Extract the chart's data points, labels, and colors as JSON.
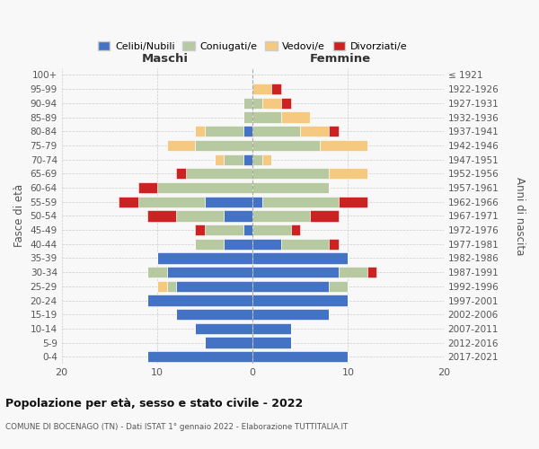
{
  "age_groups": [
    "100+",
    "95-99",
    "90-94",
    "85-89",
    "80-84",
    "75-79",
    "70-74",
    "65-69",
    "60-64",
    "55-59",
    "50-54",
    "45-49",
    "40-44",
    "35-39",
    "30-34",
    "25-29",
    "20-24",
    "15-19",
    "10-14",
    "5-9",
    "0-4"
  ],
  "birth_years": [
    "≤ 1921",
    "1922-1926",
    "1927-1931",
    "1932-1936",
    "1937-1941",
    "1942-1946",
    "1947-1951",
    "1952-1956",
    "1957-1961",
    "1962-1966",
    "1967-1971",
    "1972-1976",
    "1977-1981",
    "1982-1986",
    "1987-1991",
    "1992-1996",
    "1997-2001",
    "2002-2006",
    "2007-2011",
    "2012-2016",
    "2017-2021"
  ],
  "maschi": {
    "celibi": [
      0,
      0,
      0,
      0,
      1,
      0,
      1,
      0,
      0,
      5,
      3,
      1,
      3,
      10,
      9,
      8,
      11,
      8,
      6,
      5,
      11
    ],
    "coniugati": [
      0,
      0,
      1,
      1,
      4,
      6,
      2,
      7,
      10,
      7,
      5,
      4,
      3,
      0,
      2,
      1,
      0,
      0,
      0,
      0,
      0
    ],
    "vedovi": [
      0,
      0,
      0,
      0,
      1,
      3,
      1,
      0,
      0,
      0,
      0,
      0,
      0,
      0,
      0,
      1,
      0,
      0,
      0,
      0,
      0
    ],
    "divorziati": [
      0,
      0,
      0,
      0,
      0,
      0,
      0,
      1,
      2,
      2,
      3,
      1,
      0,
      0,
      0,
      0,
      0,
      0,
      0,
      0,
      0
    ]
  },
  "femmine": {
    "nubili": [
      0,
      0,
      0,
      0,
      0,
      0,
      0,
      0,
      0,
      1,
      0,
      0,
      3,
      10,
      9,
      8,
      10,
      8,
      4,
      4,
      10
    ],
    "coniugate": [
      0,
      0,
      1,
      3,
      5,
      7,
      1,
      8,
      8,
      8,
      6,
      4,
      5,
      0,
      3,
      2,
      0,
      0,
      0,
      0,
      0
    ],
    "vedove": [
      0,
      2,
      2,
      3,
      3,
      5,
      1,
      4,
      0,
      0,
      0,
      0,
      0,
      0,
      0,
      0,
      0,
      0,
      0,
      0,
      0
    ],
    "divorziate": [
      0,
      1,
      1,
      0,
      1,
      0,
      0,
      0,
      0,
      3,
      3,
      1,
      1,
      0,
      1,
      0,
      0,
      0,
      0,
      0,
      0
    ]
  },
  "colors": {
    "celibi": "#4472c4",
    "coniugati": "#b7c9a0",
    "vedovi": "#f5c97f",
    "divorziati": "#cc2222"
  },
  "xlim": 20,
  "title": "Popolazione per età, sesso e stato civile - 2022",
  "subtitle": "COMUNE DI BOCENAGO (TN) - Dati ISTAT 1° gennaio 2022 - Elaborazione TUTTITALIA.IT",
  "ylabel_left": "Fasce di età",
  "ylabel_right": "Anni di nascita",
  "label_maschi": "Maschi",
  "label_femmine": "Femmine",
  "legend_labels": [
    "Celibi/Nubili",
    "Coniugati/e",
    "Vedovi/e",
    "Divorziati/e"
  ],
  "bg_color": "#f8f8f8"
}
